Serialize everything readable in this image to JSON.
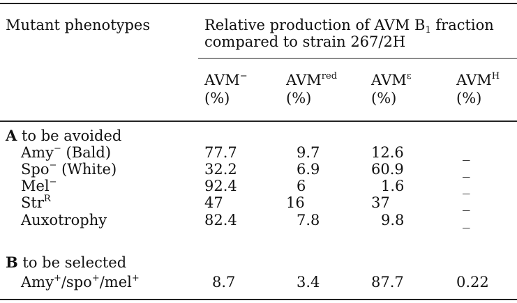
{
  "header": {
    "col0": "Mutant phenotypes",
    "title_line1_pre": "Relative production of AVM B",
    "title_line1_sub": "1",
    "title_line1_post": " fraction",
    "title_line2": "compared to strain 267/2H",
    "columns": [
      {
        "base": "AVM",
        "sup": "−",
        "unit": "(%)"
      },
      {
        "base": "AVM",
        "sup": "red",
        "unit": "(%)"
      },
      {
        "base": "AVM",
        "sup": "ε",
        "unit": "(%)"
      },
      {
        "base": "AVM",
        "sup": "H",
        "unit": "(%)"
      }
    ]
  },
  "sections": [
    {
      "letter": "A",
      "label": " to be avoided",
      "rows": [
        {
          "base": "Amy",
          "sup": "−",
          "rest": " (Bald)",
          "values": [
            "77.7",
            "9.7",
            "12.6",
            "_"
          ]
        },
        {
          "base": "Spo",
          "sup": "−",
          "rest": " (White)",
          "values": [
            "32.2",
            "6.9",
            "60.9",
            "_"
          ]
        },
        {
          "base": "Mel",
          "sup": "−",
          "rest": "",
          "values": [
            "92.4",
            "6",
            "1.6",
            "_"
          ]
        },
        {
          "base": "Str",
          "sup": "R",
          "rest": "",
          "values": [
            "47",
            "16",
            "37",
            "_"
          ]
        },
        {
          "base": "Auxotrophy",
          "sup": "",
          "rest": "",
          "values": [
            "82.4",
            "7.8",
            "9.8",
            "_"
          ]
        }
      ]
    },
    {
      "letter": "B",
      "label": " to be selected",
      "rows": [
        {
          "base": "Amy",
          "sup": "+",
          "rest": "/spo",
          "sup2": "+",
          "rest2": "/mel",
          "sup3": "+",
          "values": [
            "8.7",
            "3.4",
            "87.7",
            "0.22"
          ]
        }
      ]
    }
  ]
}
